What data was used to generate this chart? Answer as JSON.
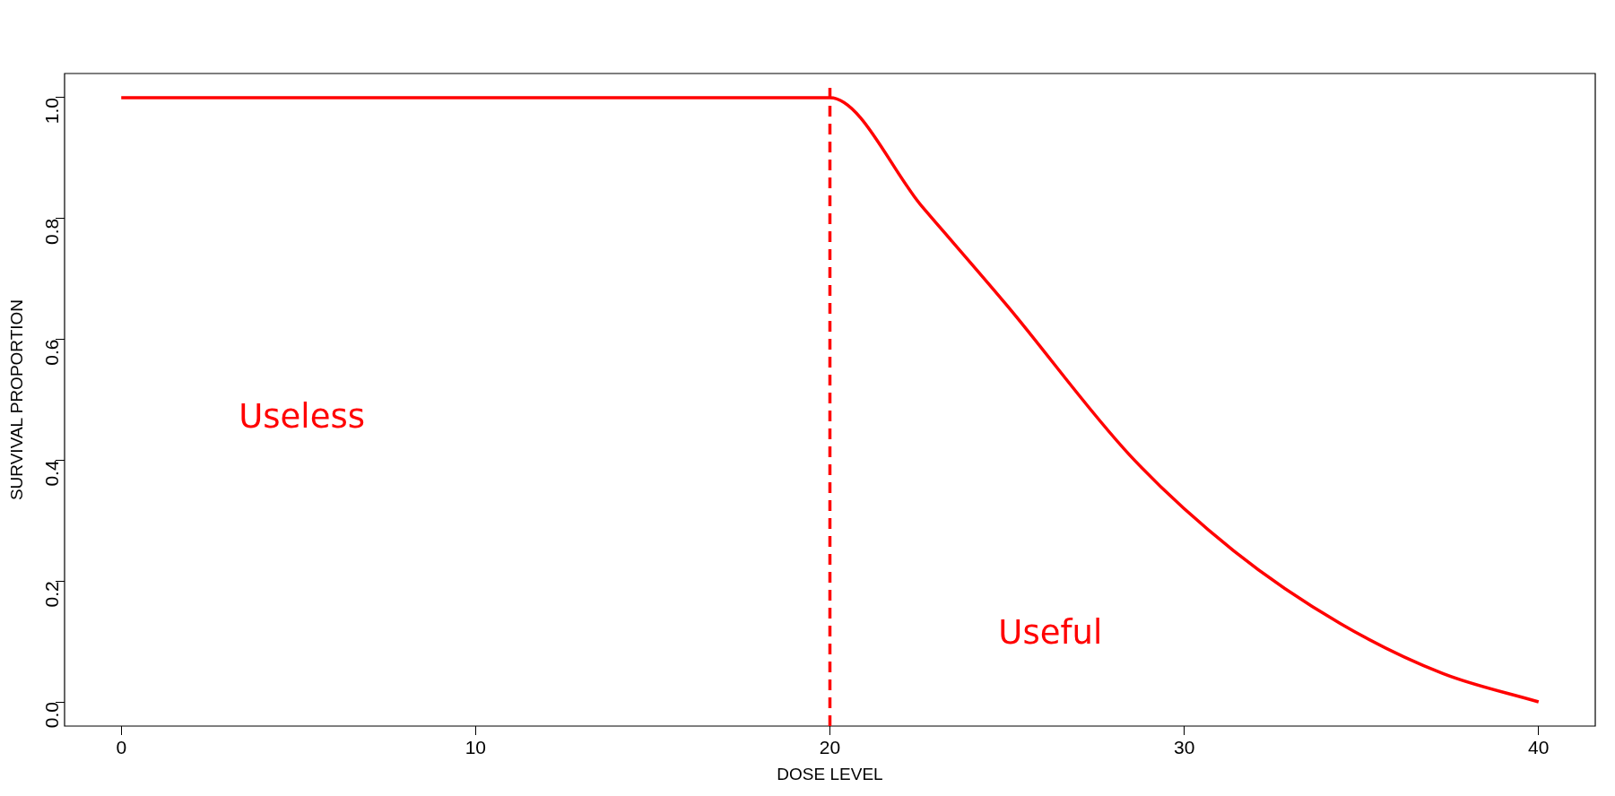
{
  "chart_data": {
    "type": "line",
    "xlabel": "DOSE LEVEL",
    "ylabel": "SURVIVAL PROPORTION",
    "series": [
      {
        "color": "#ff0000",
        "x": [
          0,
          20,
          22.6,
          25,
          28.5,
          31.4,
          34.4,
          37.3,
          40
        ],
        "values": [
          1,
          1,
          0.82,
          0.656,
          0.406,
          0.25,
          0.13,
          0.047,
          0
        ]
      }
    ],
    "xlim": [
      -1.6,
      41.6
    ],
    "xticks": [
      0,
      10,
      20,
      30,
      40
    ],
    "ylim": [
      -0.04,
      1.04
    ],
    "yticks": [
      {
        "value": 0,
        "label": "0.0"
      },
      {
        "value": 0.2,
        "label": "0.2"
      },
      {
        "value": 0.4,
        "label": "0.4"
      },
      {
        "value": 0.6,
        "label": "0.6"
      },
      {
        "value": 0.8,
        "label": "0.8"
      },
      {
        "value": 1,
        "label": "1.0"
      }
    ],
    "ref_lines": [
      {
        "axis": "x",
        "value": 20,
        "color": "#ff0000",
        "line_style": "dashed"
      }
    ],
    "annotations": [
      "Useless",
      "Useful"
    ],
    "grid": false,
    "legend": false,
    "marker": "none",
    "line_style": "solid"
  }
}
